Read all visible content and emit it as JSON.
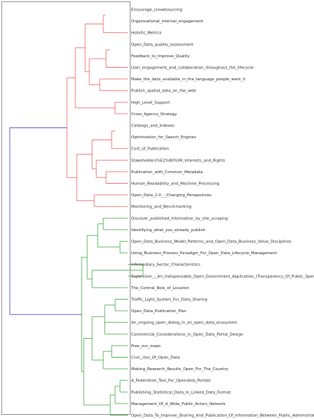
{
  "colors": {
    "cluster_a": "#ef6b6b",
    "cluster_b": "#4caf50",
    "root": "#4a4ad6",
    "frame": "#8c8c8c",
    "text": "#222222"
  },
  "leaves": [
    "Encourage_crowdsourcing",
    "Organisational_internal_engagement",
    "Holistic_Metrics",
    "Open_Data_quality_assessment",
    "Feedback_to_Improve_Quality",
    "User_engagement_and_collaboration_throughout_the_lifecycle",
    "Make_the_data_available_in_the_language_people_want_it",
    "Publish_spatial_data_on_the_web",
    "High_Level_Support",
    "Cross_Agency_Strategy",
    "Catalogs_and_Indexes",
    "Optimization_for_Search_Engines",
    "Cost_of_Publication",
    "Stakeholders%E2%80%99_Interests_and_Rights",
    "Publication_with_Common_Metadata",
    "Human_Readability_and_Machine_Processing",
    "Open_Data_2.0_-_Changing_Perspectives",
    "Monitoring_and_Benchmarking",
    "Discover_published_information_by_site_scraping",
    "Identifying_what_you_already_publish",
    "Open_Data_Business_Model_Patterns_and_Open_Data_Business_Value_Disciplines",
    "Using_Business_Process_Paradigm_For_Open_Data_Lifecycle_Management",
    "Infomediary_Sector_Characteristics",
    "Supervizor_-_An_Indispensable_Open_Government_Application_(Transparency_Of_Public_Spending)",
    "The_Central_Role_of_Location",
    "Traffic_Light_System_For_Data_Sharing",
    "Open_Data_Publication_Plan",
    "An_ongoing_open_dialog_in_an_open_data_ecosystem",
    "Commercial_Considerations_in_Open_Data_Portal_Design",
    "Free_our_maps",
    "Civic_Use_Of_Open_Data",
    "Making_Research_Results_Open_For_The_Country",
    "A_Federation_Tool_For_Opendata_Portals",
    "Publishing_Statistical_Data_In_Linked_Data_Format",
    "Management_Of_A_Wide_Public_Actors_Network",
    "Open_Data_To_Improve_Sharing_And_Publication_Of_Information_Between_Public_Administrations"
  ]
}
